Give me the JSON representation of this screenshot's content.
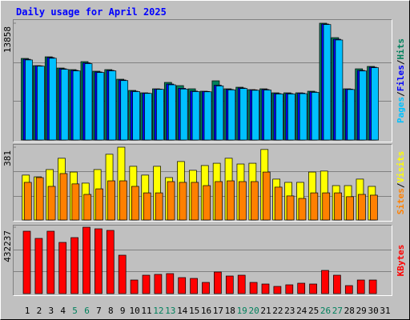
{
  "chart_data": [
    {
      "type": "bar",
      "title": "Daily usage for April 2025",
      "legend_separator": "/",
      "ylim": [
        0,
        13858
      ],
      "yticks": [
        13858
      ],
      "series": [
        {
          "name": "Hits",
          "color": "#00805c",
          "values": [
            9680,
            8826,
            9870,
            8541,
            8351,
            9300,
            8161,
            8351,
            7212,
            5884,
            5599,
            6074,
            6833,
            6453,
            6074,
            5789,
            7023,
            6074,
            6263,
            5979,
            6074,
            5599,
            5599,
            5599,
            5789,
            13858,
            12147,
            6074,
            8446,
            8731,
            null
          ]
        },
        {
          "name": "Files",
          "color": "#0000ff",
          "values": [
            9580,
            8800,
            9780,
            8450,
            8260,
            9150,
            8070,
            8260,
            7120,
            5790,
            5560,
            6040,
            6640,
            6130,
            5800,
            5760,
            6500,
            6000,
            6170,
            5950,
            5990,
            5510,
            5510,
            5560,
            5700,
            13760,
            11960,
            6040,
            8260,
            8640,
            null
          ]
        },
        {
          "name": "Pages",
          "color": "#00c0ff",
          "values": [
            9500,
            8760,
            9700,
            8390,
            8200,
            9060,
            8010,
            8200,
            7050,
            5740,
            5530,
            6010,
            6550,
            6050,
            5740,
            5720,
            6420,
            5950,
            6110,
            5900,
            5930,
            5460,
            5460,
            5500,
            5650,
            13700,
            11870,
            5990,
            8190,
            8580,
            null
          ]
        }
      ]
    },
    {
      "type": "bar",
      "legend_separator": "/",
      "ylim": [
        0,
        381
      ],
      "yticks": [
        381
      ],
      "series": [
        {
          "name": "Visits",
          "color": "#ffff00",
          "values": [
            235,
            226,
            264,
            323,
            251,
            193,
            264,
            344,
            381,
            281,
            235,
            281,
            222,
            306,
            260,
            285,
            297,
            323,
            293,
            297,
            369,
            214,
            197,
            197,
            251,
            256,
            180,
            180,
            214,
            176,
            null
          ]
        },
        {
          "name": "Sites",
          "color": "#ff8000",
          "values": [
            197,
            222,
            176,
            243,
            189,
            134,
            163,
            205,
            205,
            176,
            142,
            142,
            201,
            197,
            197,
            180,
            201,
            205,
            201,
            201,
            251,
            172,
            126,
            113,
            142,
            142,
            142,
            122,
            134,
            130,
            null
          ]
        }
      ]
    },
    {
      "type": "bar",
      "ylim": [
        0,
        432237
      ],
      "yticks": [
        432237
      ],
      "series": [
        {
          "name": "KBytes",
          "color": "#ff0000",
          "values": [
            406224,
            359352,
            406224,
            333312,
            364560,
            432237,
            421848,
            411432,
            249984,
            88536,
            119784,
            124992,
            130200,
            104160,
            98952,
            72912,
            140616,
            114576,
            119784,
            72912,
            62496,
            46872,
            57288,
            67704,
            62496,
            151032,
            119784,
            52080,
            88536,
            88536,
            null
          ]
        }
      ],
      "categories": [
        "1",
        "2",
        "3",
        "4",
        "5",
        "6",
        "7",
        "8",
        "9",
        "10",
        "11",
        "12",
        "13",
        "14",
        "15",
        "16",
        "17",
        "18",
        "19",
        "20",
        "21",
        "22",
        "23",
        "24",
        "25",
        "26",
        "27",
        "28",
        "29",
        "30",
        "31"
      ],
      "category_colors": [
        "#000000",
        "#000000",
        "#000000",
        "#000000",
        "#00805c",
        "#00805c",
        "#000000",
        "#000000",
        "#000000",
        "#000000",
        "#000000",
        "#00805c",
        "#00805c",
        "#000000",
        "#000000",
        "#000000",
        "#000000",
        "#000000",
        "#00805c",
        "#00805c",
        "#000000",
        "#000000",
        "#000000",
        "#000000",
        "#000000",
        "#00805c",
        "#00805c",
        "#000000",
        "#000000",
        "#000000",
        "#000000"
      ]
    }
  ]
}
